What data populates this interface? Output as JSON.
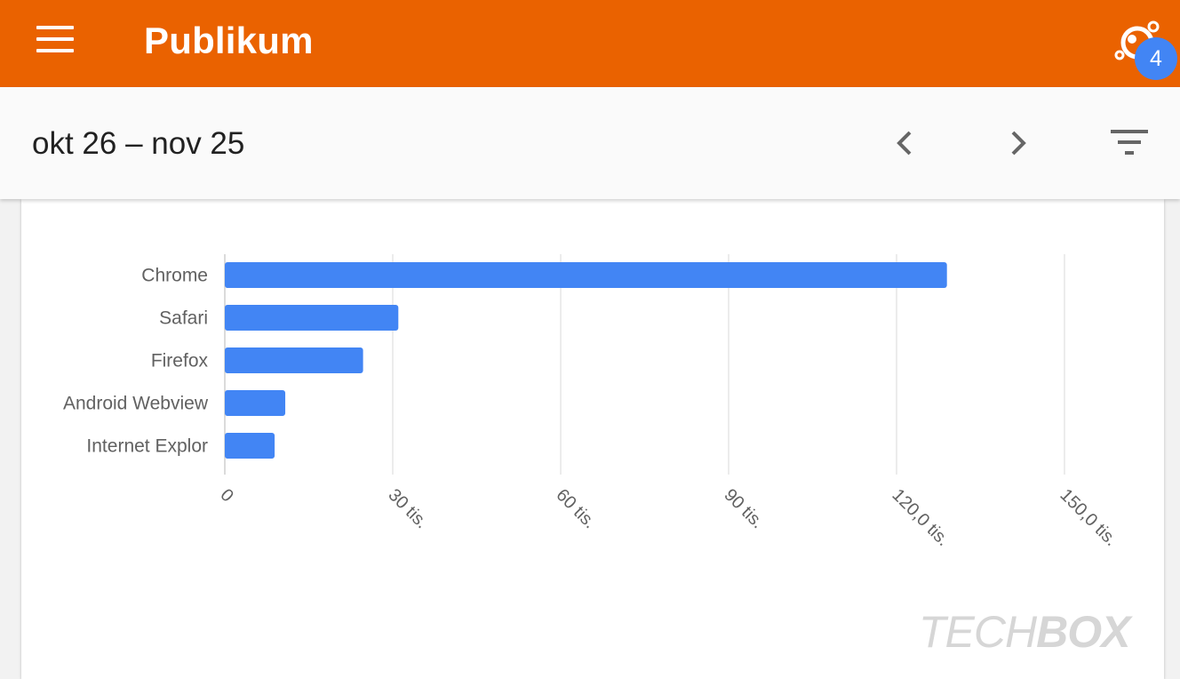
{
  "app_bar": {
    "title": "Publikum",
    "insights_badge": "4",
    "bg_color": "#ea6200"
  },
  "date_bar": {
    "range": "okt 26 – nov 25",
    "icons": [
      "chevron-left-icon",
      "chevron-right-icon",
      "filter-icon"
    ]
  },
  "chart_data": {
    "type": "bar",
    "orientation": "horizontal",
    "categories": [
      "Chrome",
      "Safari",
      "Firefox",
      "Android Webview",
      "Internet Explor"
    ],
    "values": [
      129000,
      31000,
      24700,
      10800,
      8900
    ],
    "xlim": [
      0,
      150000
    ],
    "ticks": [
      0,
      30000,
      60000,
      90000,
      120000,
      150000
    ],
    "tick_labels": [
      "0",
      "30 tis.",
      "60 tis.",
      "90 tis.",
      "120,0 tis.",
      "150,0 tis."
    ],
    "bar_color": "#4285f4",
    "grid": true,
    "title": "",
    "xlabel": "",
    "ylabel": ""
  },
  "watermark": {
    "light": "TECH",
    "bold": "BOX"
  }
}
